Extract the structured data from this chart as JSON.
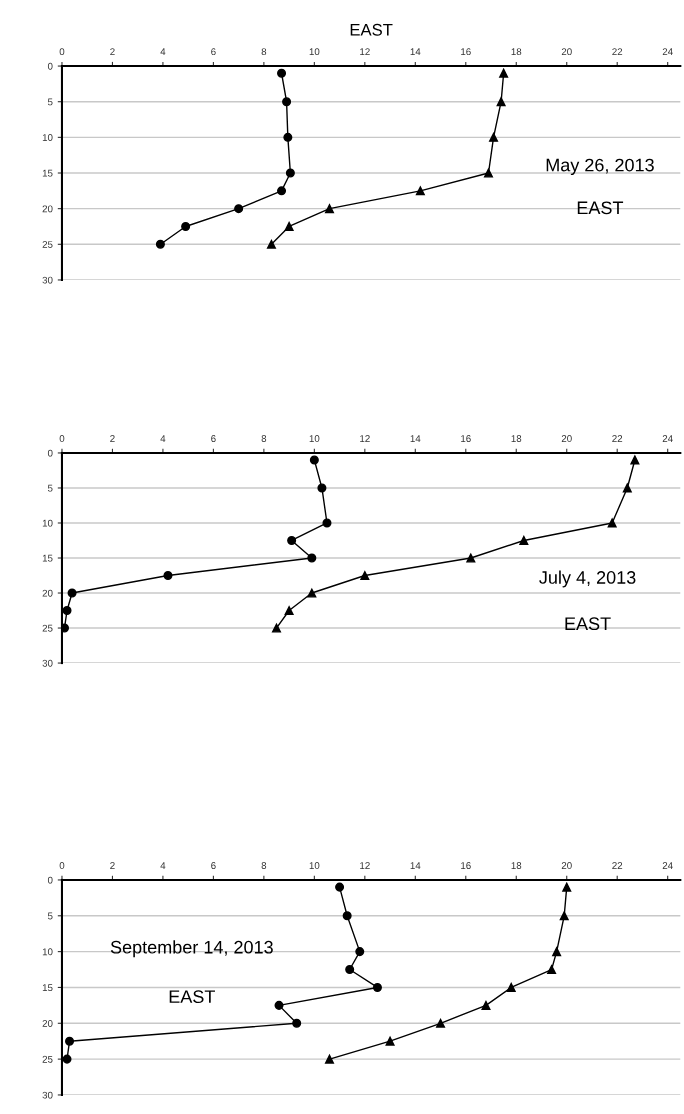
{
  "chart_data": [
    {
      "type": "line",
      "title": "EAST",
      "annotations": [
        "May 26, 2013",
        "EAST"
      ],
      "xlim": [
        0,
        24.5
      ],
      "xticks": [
        0,
        2,
        4,
        6,
        8,
        10,
        12,
        14,
        16,
        18,
        20,
        22,
        24
      ],
      "ylim": [
        30,
        0
      ],
      "yticks": [
        0,
        5,
        10,
        15,
        20,
        25,
        30
      ],
      "grid": "y",
      "line_style": "solid",
      "series": [
        {
          "color": "#000000",
          "marker": "circle",
          "x": [
            8.7,
            8.9,
            8.95,
            9.05,
            8.7,
            7.0,
            4.9,
            3.9
          ],
          "values": [
            1,
            5,
            10,
            15,
            17.5,
            20,
            22.5,
            25
          ]
        },
        {
          "color": "#000000",
          "marker": "triangle",
          "x": [
            17.5,
            17.4,
            17.1,
            16.9,
            14.2,
            10.6,
            9.0,
            8.3
          ],
          "values": [
            1,
            5,
            10,
            15,
            17.5,
            20,
            22.5,
            25
          ]
        }
      ]
    },
    {
      "type": "line",
      "annotations": [
        "July 4, 2013",
        "EAST"
      ],
      "xlim": [
        0,
        24.5
      ],
      "xticks": [
        0,
        2,
        4,
        6,
        8,
        10,
        12,
        14,
        16,
        18,
        20,
        22,
        24
      ],
      "ylim": [
        30,
        0
      ],
      "yticks": [
        0,
        5,
        10,
        15,
        20,
        25,
        30
      ],
      "grid": "y",
      "line_style": "solid",
      "series": [
        {
          "color": "#000000",
          "marker": "circle",
          "x": [
            10.0,
            10.3,
            10.5,
            9.1,
            9.9,
            4.2,
            0.4,
            0.2,
            0.1
          ],
          "values": [
            1,
            5,
            10,
            12.5,
            15,
            17.5,
            20,
            22.5,
            25
          ]
        },
        {
          "color": "#000000",
          "marker": "triangle",
          "x": [
            22.7,
            22.4,
            21.8,
            18.3,
            16.2,
            12.0,
            9.9,
            9.0,
            8.5
          ],
          "values": [
            1,
            5,
            10,
            12.5,
            15,
            17.5,
            20,
            22.5,
            25
          ]
        }
      ]
    },
    {
      "type": "line",
      "annotations": [
        "September 14, 2013",
        "EAST"
      ],
      "xlim": [
        0,
        24.5
      ],
      "xticks": [
        0,
        2,
        4,
        6,
        8,
        10,
        12,
        14,
        16,
        18,
        20,
        22,
        24
      ],
      "ylim": [
        30,
        0
      ],
      "yticks": [
        0,
        5,
        10,
        15,
        20,
        25,
        30
      ],
      "grid": "y",
      "line_style": "solid",
      "series": [
        {
          "color": "#000000",
          "marker": "circle",
          "x": [
            11.0,
            11.3,
            11.8,
            11.4,
            12.5,
            8.6,
            9.3,
            0.3,
            0.2
          ],
          "values": [
            1,
            5,
            10,
            12.5,
            15,
            17.5,
            20,
            22.5,
            25
          ]
        },
        {
          "color": "#000000",
          "marker": "triangle",
          "x": [
            20.0,
            19.9,
            19.6,
            19.4,
            17.8,
            16.8,
            15.0,
            13.0,
            10.6
          ],
          "values": [
            1,
            5,
            10,
            12.5,
            15,
            17.5,
            20,
            22.5,
            25
          ]
        }
      ]
    }
  ]
}
